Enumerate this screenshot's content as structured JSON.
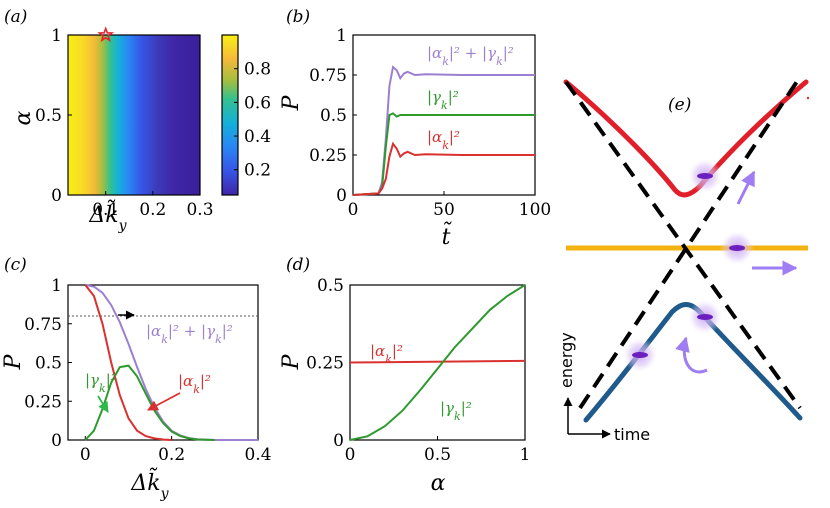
{
  "colors": {
    "red": "#d9312f",
    "green": "#2e9a2e",
    "purple": "#9d7fd1",
    "gold": "#f2b30f",
    "blue": "#1f5a8c",
    "black": "#000000",
    "glow": "#c7a2f0",
    "dot": "#6b1fbf",
    "arrow": "#9f7df2"
  },
  "chart_data": [
    {
      "panel": "(a)",
      "type": "heatmap",
      "xlabel": "Δk̃_y",
      "ylabel": "α",
      "x_ticks": [
        "0.1",
        "0.2",
        "0.3"
      ],
      "y_ticks": [
        "0",
        "0.5",
        "1"
      ],
      "xlim": [
        0.02,
        0.3
      ],
      "ylim": [
        0,
        1
      ],
      "colorbar_ticks": [
        "0.2",
        "0.4",
        "0.6",
        "0.8"
      ],
      "colorbar_range": [
        0.05,
        1.0
      ],
      "marker": {
        "label": "star",
        "x": 0.1,
        "y": 1
      }
    },
    {
      "panel": "(b)",
      "type": "line",
      "xlabel": "t̃",
      "ylabel": "P",
      "x_ticks": [
        "0",
        "50",
        "100"
      ],
      "y_ticks": [
        "0",
        "0.25",
        "0.5",
        "0.75",
        "1"
      ],
      "xlim": [
        0,
        100
      ],
      "ylim": [
        0,
        1
      ],
      "series": [
        {
          "name": "|α_k|² + |γ_k|²",
          "label_text": "|αk|² + |γk|²",
          "color": "purple",
          "final": 0.75,
          "x": [
            0,
            14,
            16,
            18,
            20,
            22,
            24,
            26,
            28,
            30,
            34,
            40,
            60,
            100
          ],
          "y": [
            0,
            0.01,
            0.08,
            0.35,
            0.68,
            0.8,
            0.78,
            0.73,
            0.76,
            0.77,
            0.75,
            0.755,
            0.75,
            0.75
          ]
        },
        {
          "name": "|γ_k|²",
          "label_text": "|γk|²",
          "color": "green",
          "final": 0.5,
          "x": [
            0,
            14,
            16,
            18,
            20,
            22,
            24,
            26,
            30,
            40,
            60,
            100
          ],
          "y": [
            0,
            0.01,
            0.05,
            0.3,
            0.5,
            0.51,
            0.49,
            0.5,
            0.5,
            0.5,
            0.5,
            0.5
          ]
        },
        {
          "name": "|α_k|²",
          "label_text": "|αk|²",
          "color": "red",
          "final": 0.25,
          "x": [
            0,
            14,
            16,
            18,
            20,
            22,
            24,
            26,
            28,
            30,
            34,
            40,
            60,
            100
          ],
          "y": [
            0,
            0.01,
            0.04,
            0.1,
            0.24,
            0.32,
            0.29,
            0.24,
            0.26,
            0.27,
            0.25,
            0.255,
            0.25,
            0.25
          ]
        }
      ]
    },
    {
      "panel": "(c)",
      "type": "line",
      "xlabel": "Δk̃_y",
      "ylabel": "P",
      "x_ticks": [
        "0",
        "0.2",
        "0.4"
      ],
      "y_ticks": [
        "0",
        "0.25",
        "0.5",
        "0.75",
        "1"
      ],
      "xlim": [
        -0.04,
        0.4
      ],
      "ylim": [
        0,
        1
      ],
      "reference_line": 0.8,
      "series": [
        {
          "name": "|α_k|² + |γ_k|²",
          "label_text": "|αk|² + |γk|²",
          "color": "purple",
          "x": [
            0,
            0.02,
            0.04,
            0.06,
            0.08,
            0.1,
            0.12,
            0.14,
            0.16,
            0.18,
            0.2,
            0.22,
            0.24,
            0.26,
            0.3,
            0.4
          ],
          "y": [
            1,
            0.99,
            0.95,
            0.87,
            0.76,
            0.62,
            0.47,
            0.33,
            0.21,
            0.12,
            0.06,
            0.03,
            0.012,
            0.005,
            0.0,
            0.0
          ]
        },
        {
          "name": "|γ_k|²",
          "label_text": "|γk|²",
          "color": "green",
          "x": [
            0,
            0.02,
            0.04,
            0.06,
            0.08,
            0.1,
            0.12,
            0.14,
            0.16,
            0.18,
            0.2,
            0.22,
            0.24,
            0.26,
            0.3
          ],
          "y": [
            0,
            0.06,
            0.2,
            0.37,
            0.47,
            0.48,
            0.41,
            0.3,
            0.19,
            0.11,
            0.055,
            0.025,
            0.01,
            0.003,
            0
          ]
        },
        {
          "name": "|α_k|²",
          "label_text": "|αk|²",
          "color": "red",
          "x": [
            0,
            0.02,
            0.04,
            0.06,
            0.08,
            0.1,
            0.12,
            0.14,
            0.16,
            0.18,
            0.2
          ],
          "y": [
            1,
            0.93,
            0.75,
            0.5,
            0.29,
            0.14,
            0.06,
            0.025,
            0.01,
            0.003,
            0
          ]
        }
      ]
    },
    {
      "panel": "(d)",
      "type": "line",
      "xlabel": "α",
      "ylabel": "P",
      "x_ticks": [
        "0",
        "0.5",
        "1"
      ],
      "y_ticks": [
        "0",
        "0.25",
        "0.5"
      ],
      "xlim": [
        0,
        1
      ],
      "ylim": [
        0,
        0.5
      ],
      "series": [
        {
          "name": "|α_k|²",
          "label_text": "|αk|²",
          "color": "red",
          "x": [
            0,
            1
          ],
          "y": [
            0.25,
            0.255
          ]
        },
        {
          "name": "|γ_k|²",
          "label_text": "|γk|²",
          "color": "green",
          "x": [
            0,
            0.1,
            0.2,
            0.3,
            0.4,
            0.5,
            0.6,
            0.7,
            0.8,
            0.9,
            1
          ],
          "y": [
            0,
            0.012,
            0.045,
            0.095,
            0.16,
            0.23,
            0.3,
            0.36,
            0.42,
            0.465,
            0.5
          ]
        }
      ]
    },
    {
      "panel": "(e)",
      "type": "diagram",
      "labels": {
        "energy": "energy",
        "time": "time"
      }
    }
  ]
}
